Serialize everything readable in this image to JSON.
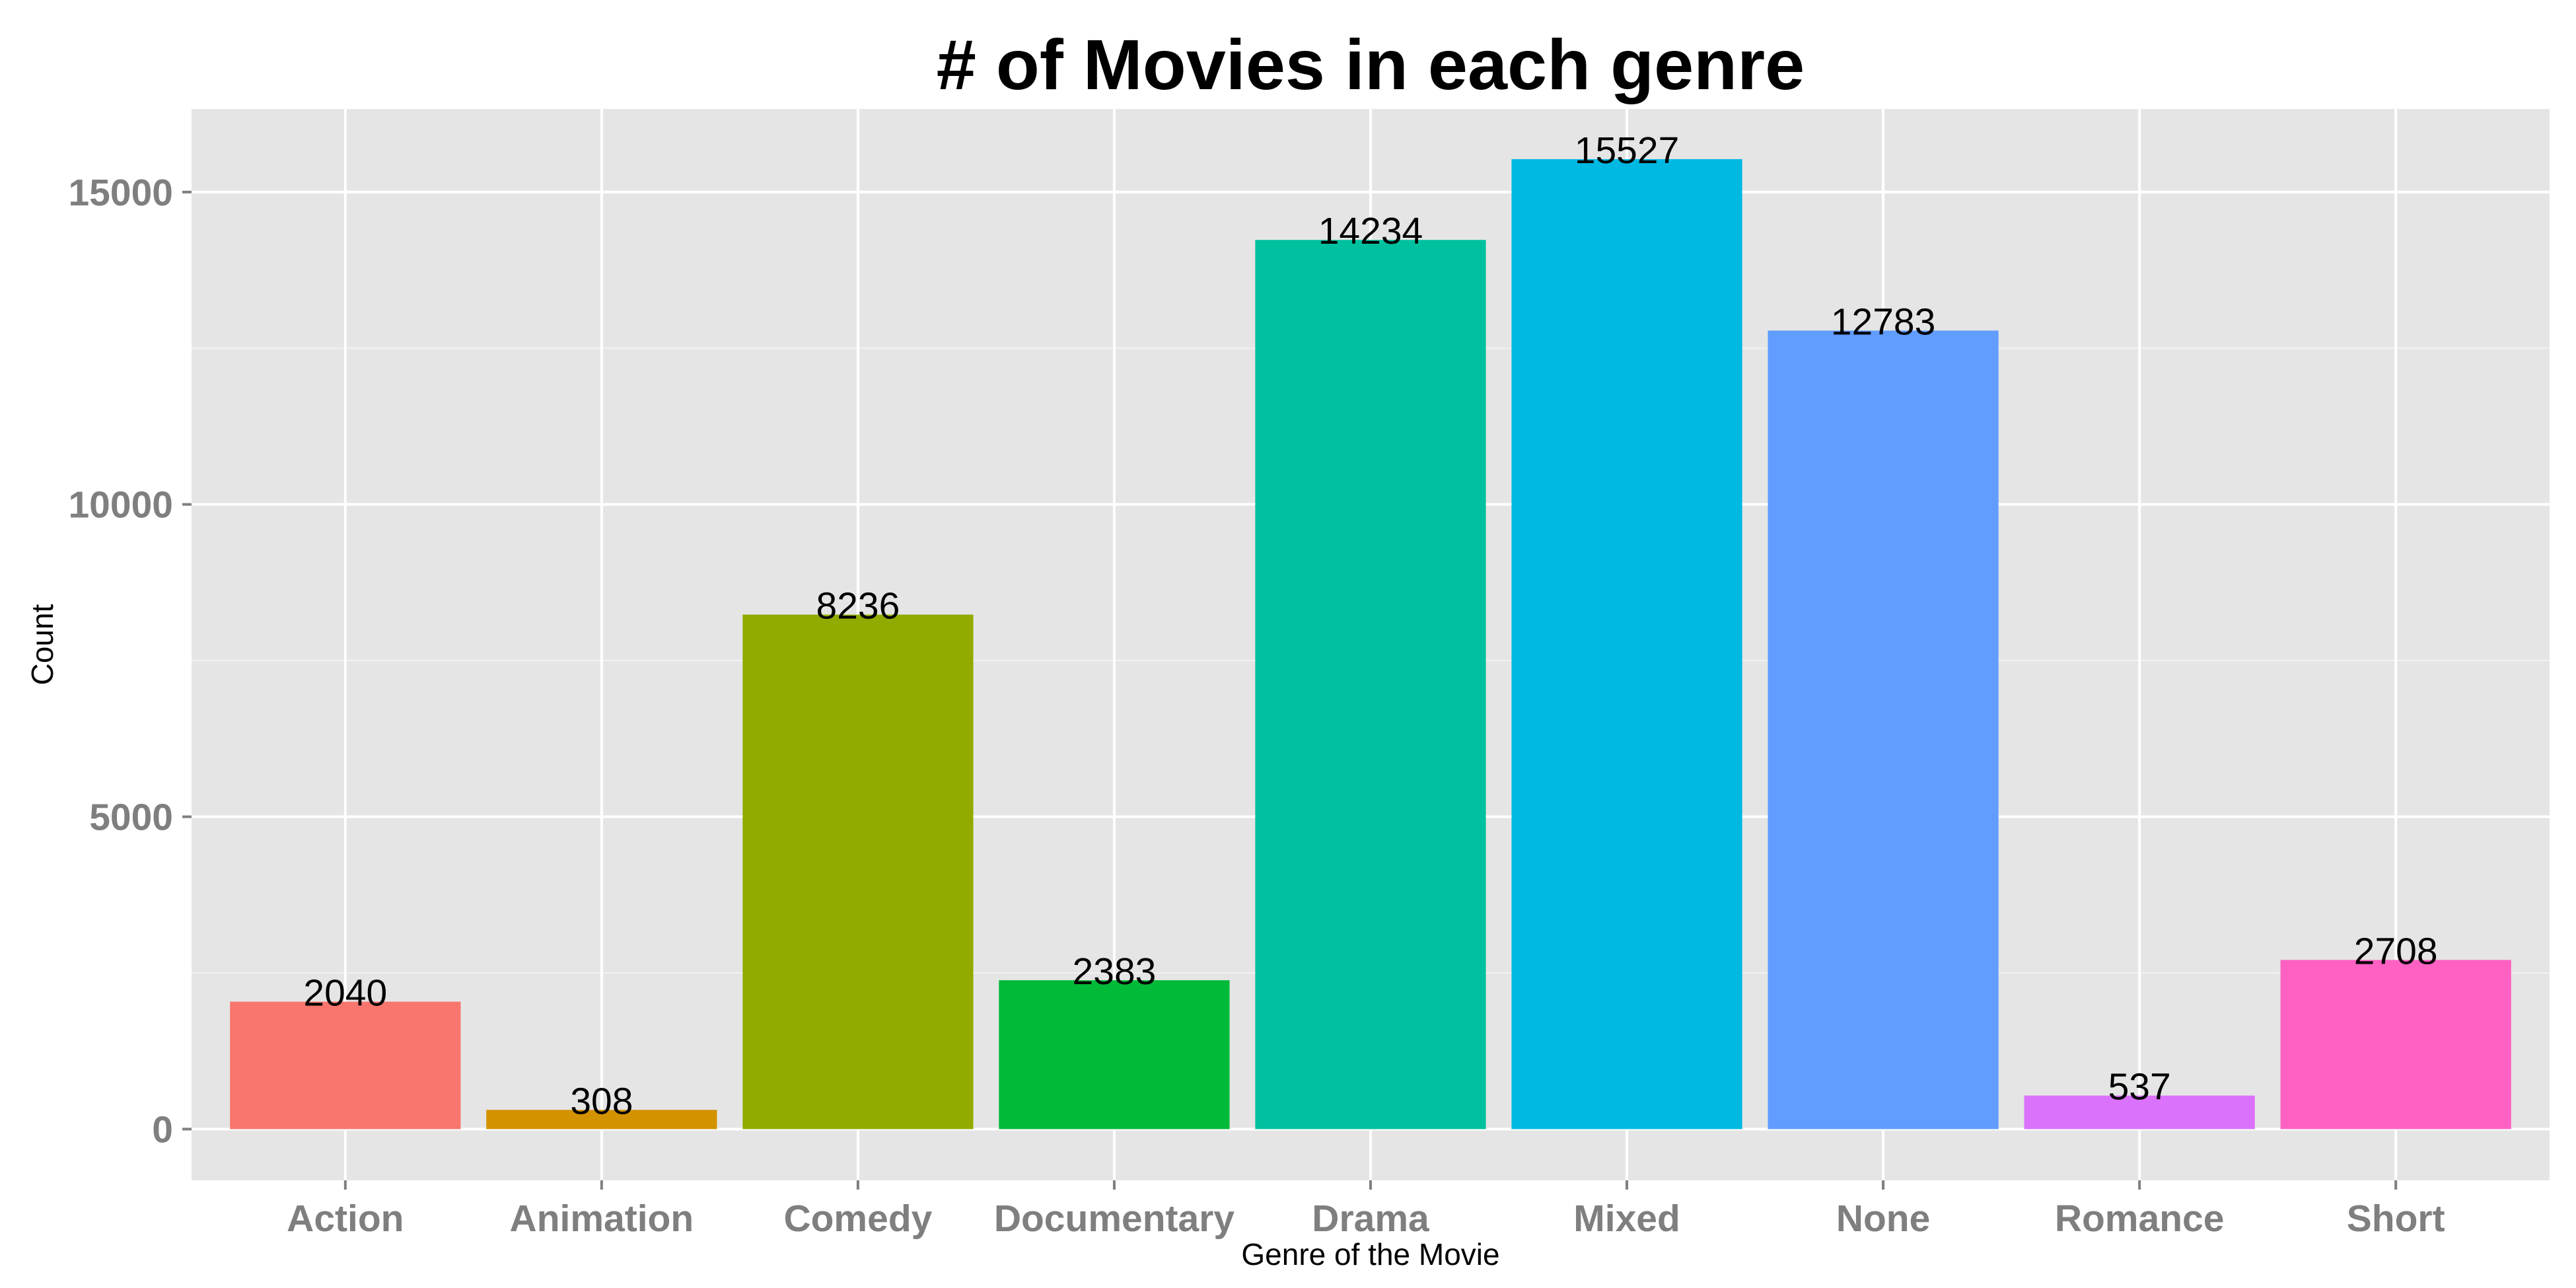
{
  "chart_data": {
    "type": "bar",
    "title": "# of Movies in each genre",
    "xlabel": "Genre of the Movie",
    "ylabel": "Count",
    "categories": [
      "Action",
      "Animation",
      "Comedy",
      "Documentary",
      "Drama",
      "Mixed",
      "None",
      "Romance",
      "Short"
    ],
    "values": [
      2040,
      308,
      8236,
      2383,
      14234,
      15527,
      12783,
      537,
      2708
    ],
    "data_labels": [
      "2040",
      "308",
      "8236",
      "2383",
      "14234",
      "15527",
      "12783",
      "537",
      "2708"
    ],
    "colors": [
      "#F8766D",
      "#D39200",
      "#93AA00",
      "#00BA38",
      "#00C19F",
      "#00B9E3",
      "#619CFF",
      "#DB72FB",
      "#FF61C3"
    ],
    "ylim": [
      -820,
      16330
    ],
    "yticks": [
      0,
      5000,
      10000,
      15000
    ],
    "ytick_labels": [
      "0",
      "5000",
      "10000",
      "15000"
    ],
    "grid": true,
    "legend": "none",
    "panel_background": "#E5E5E5",
    "grid_color": "#FFFFFF"
  }
}
